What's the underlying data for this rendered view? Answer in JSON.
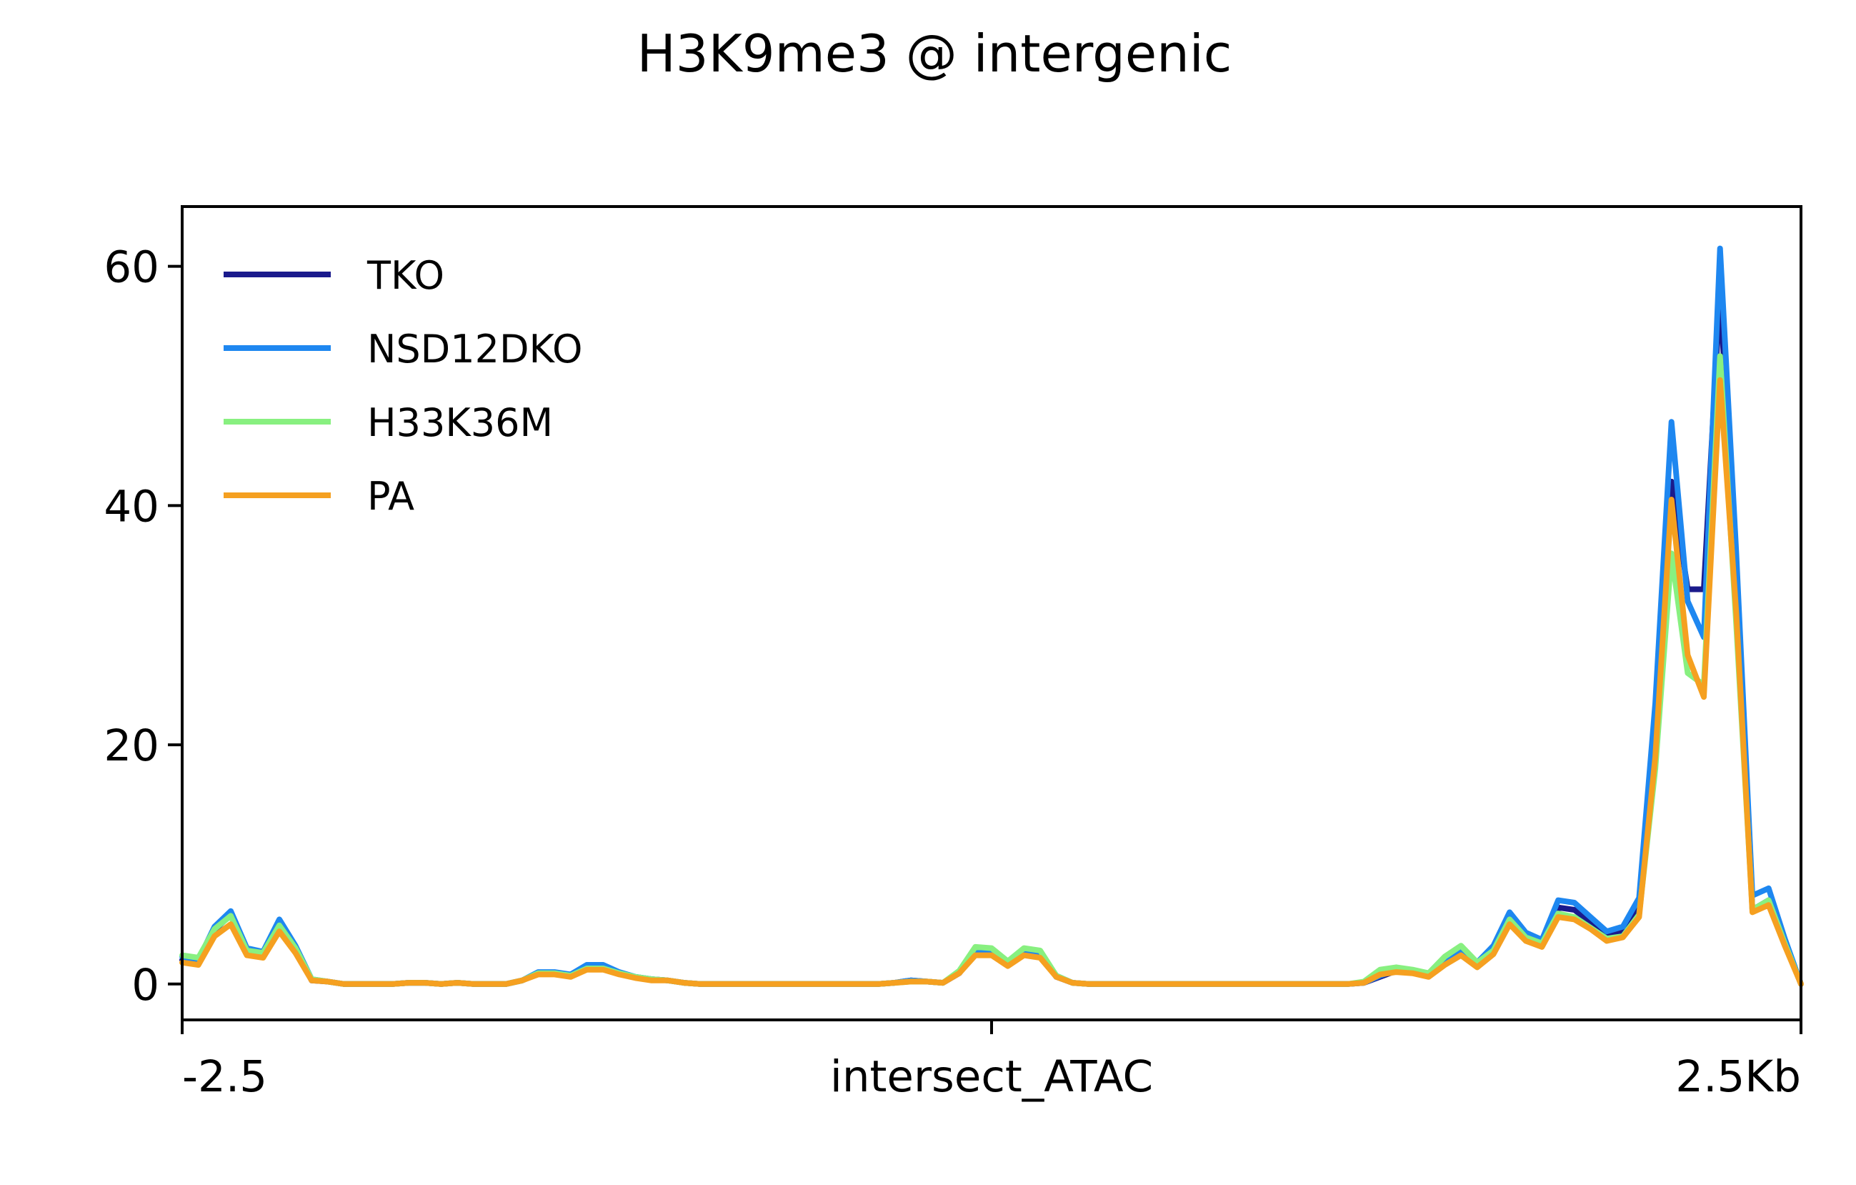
{
  "chart_data": {
    "type": "line",
    "title": "H3K9me3 @ intergenic",
    "xlabel": "",
    "ylabel": "",
    "x_tick_labels": [
      "-2.5",
      "intersect_ATAC",
      "2.5Kb"
    ],
    "x_tick_values": [
      -2500,
      0,
      2500
    ],
    "xlim": [
      -2500,
      2500
    ],
    "ylim": [
      -3,
      65
    ],
    "y_ticks": [
      0,
      20,
      40,
      60
    ],
    "grid": false,
    "legend_position": "upper-left",
    "x": [
      -2500,
      -2450,
      -2400,
      -2350,
      -2300,
      -2250,
      -2200,
      -2150,
      -2100,
      -2050,
      -2000,
      -1950,
      -1900,
      -1850,
      -1800,
      -1750,
      -1700,
      -1650,
      -1600,
      -1550,
      -1500,
      -1450,
      -1400,
      -1350,
      -1300,
      -1250,
      -1200,
      -1150,
      -1100,
      -1050,
      -1000,
      -950,
      -900,
      -850,
      -800,
      -750,
      -700,
      -650,
      -600,
      -550,
      -500,
      -450,
      -400,
      -350,
      -300,
      -250,
      -200,
      -150,
      -100,
      -50,
      0,
      50,
      100,
      150,
      200,
      250,
      300,
      350,
      400,
      450,
      500,
      550,
      600,
      650,
      700,
      750,
      800,
      850,
      900,
      950,
      1000,
      1050,
      1100,
      1150,
      1200,
      1250,
      1300,
      1350,
      1400,
      1450,
      1500,
      1550,
      1600,
      1650,
      1700,
      1750,
      1800,
      1850,
      1900,
      1950,
      2000,
      2050,
      2100,
      2150,
      2200,
      2250,
      2300,
      2350,
      2400,
      2450,
      2500
    ],
    "series": [
      {
        "name": "TKO",
        "color": "#1a1a8c",
        "values": [
          2.0,
          1.8,
          4.5,
          5.8,
          2.8,
          2.5,
          5.0,
          3.0,
          0.3,
          0.2,
          0.0,
          0.0,
          0.0,
          0.0,
          0.1,
          0.1,
          0.0,
          0.1,
          0.0,
          0.0,
          0.0,
          0.3,
          0.9,
          0.9,
          0.7,
          1.4,
          1.4,
          0.9,
          0.6,
          0.4,
          0.3,
          0.1,
          0.0,
          0.0,
          0.0,
          0.0,
          0.0,
          0.0,
          0.0,
          0.0,
          0.0,
          0.0,
          0.0,
          0.0,
          0.1,
          0.3,
          0.2,
          0.1,
          0.9,
          2.6,
          2.6,
          1.6,
          2.6,
          2.4,
          0.6,
          0.1,
          0.0,
          0.0,
          0.0,
          0.0,
          0.0,
          0.0,
          0.0,
          0.0,
          0.0,
          0.0,
          0.0,
          0.0,
          0.0,
          0.0,
          0.0,
          0.0,
          0.0,
          0.1,
          0.6,
          1.1,
          1.0,
          0.7,
          1.8,
          2.6,
          1.6,
          2.9,
          5.4,
          3.9,
          3.4,
          6.4,
          6.2,
          5.2,
          4.1,
          4.4,
          6.6,
          22.0,
          42.0,
          33.0,
          33.0,
          58.0,
          33.0,
          6.2,
          7.0,
          3.5,
          0.0
        ]
      },
      {
        "name": "NSD12DKO",
        "color": "#1e87f0",
        "values": [
          2.3,
          2.0,
          4.8,
          6.1,
          3.0,
          2.7,
          5.4,
          3.2,
          0.4,
          0.2,
          0.0,
          0.0,
          0.0,
          0.0,
          0.1,
          0.1,
          0.0,
          0.1,
          0.0,
          0.0,
          0.0,
          0.3,
          1.0,
          1.0,
          0.8,
          1.6,
          1.6,
          1.0,
          0.6,
          0.4,
          0.3,
          0.1,
          0.0,
          0.0,
          0.0,
          0.0,
          0.0,
          0.0,
          0.0,
          0.0,
          0.0,
          0.0,
          0.0,
          0.0,
          0.1,
          0.3,
          0.2,
          0.1,
          1.0,
          2.8,
          2.8,
          1.8,
          2.8,
          2.6,
          0.7,
          0.1,
          0.0,
          0.0,
          0.0,
          0.0,
          0.0,
          0.0,
          0.0,
          0.0,
          0.0,
          0.0,
          0.0,
          0.0,
          0.0,
          0.0,
          0.0,
          0.0,
          0.0,
          0.1,
          0.7,
          1.2,
          1.1,
          0.8,
          2.0,
          2.9,
          1.8,
          3.2,
          6.0,
          4.3,
          3.7,
          7.0,
          6.8,
          5.6,
          4.4,
          4.8,
          7.2,
          23.5,
          47.0,
          32.0,
          29.0,
          61.5,
          36.0,
          7.4,
          8.0,
          3.8,
          0.0
        ]
      },
      {
        "name": "H33K36M",
        "color": "#88f080",
        "values": [
          2.4,
          2.2,
          4.6,
          5.7,
          2.8,
          2.6,
          4.9,
          3.0,
          0.4,
          0.2,
          0.0,
          0.0,
          0.0,
          0.0,
          0.1,
          0.1,
          0.0,
          0.1,
          0.0,
          0.0,
          0.0,
          0.3,
          0.9,
          0.9,
          0.7,
          1.3,
          1.3,
          0.9,
          0.6,
          0.4,
          0.3,
          0.1,
          0.0,
          0.0,
          0.0,
          0.0,
          0.0,
          0.0,
          0.0,
          0.0,
          0.0,
          0.0,
          0.0,
          0.0,
          0.1,
          0.2,
          0.2,
          0.1,
          1.1,
          3.1,
          3.0,
          1.9,
          3.0,
          2.8,
          0.7,
          0.1,
          0.0,
          0.0,
          0.0,
          0.0,
          0.0,
          0.0,
          0.0,
          0.0,
          0.0,
          0.0,
          0.0,
          0.0,
          0.0,
          0.0,
          0.0,
          0.0,
          0.0,
          0.2,
          1.2,
          1.4,
          1.2,
          0.9,
          2.3,
          3.2,
          1.8,
          2.8,
          5.4,
          3.9,
          3.4,
          5.9,
          5.6,
          4.7,
          3.8,
          4.0,
          5.8,
          18.0,
          36.0,
          26.0,
          25.0,
          52.5,
          30.0,
          6.2,
          7.0,
          3.4,
          0.0
        ]
      },
      {
        "name": "PA",
        "color": "#f5a020",
        "values": [
          1.8,
          1.6,
          4.0,
          5.0,
          2.4,
          2.2,
          4.4,
          2.6,
          0.3,
          0.2,
          0.0,
          0.0,
          0.0,
          0.0,
          0.1,
          0.1,
          0.0,
          0.1,
          0.0,
          0.0,
          0.0,
          0.3,
          0.8,
          0.8,
          0.6,
          1.2,
          1.2,
          0.8,
          0.5,
          0.3,
          0.3,
          0.1,
          0.0,
          0.0,
          0.0,
          0.0,
          0.0,
          0.0,
          0.0,
          0.0,
          0.0,
          0.0,
          0.0,
          0.0,
          0.1,
          0.2,
          0.2,
          0.1,
          0.9,
          2.4,
          2.4,
          1.5,
          2.4,
          2.2,
          0.6,
          0.1,
          0.0,
          0.0,
          0.0,
          0.0,
          0.0,
          0.0,
          0.0,
          0.0,
          0.0,
          0.0,
          0.0,
          0.0,
          0.0,
          0.0,
          0.0,
          0.0,
          0.0,
          0.1,
          0.8,
          1.0,
          0.9,
          0.6,
          1.6,
          2.4,
          1.4,
          2.5,
          5.0,
          3.6,
          3.1,
          5.6,
          5.4,
          4.6,
          3.6,
          3.9,
          5.6,
          19.0,
          40.5,
          27.5,
          24.0,
          50.5,
          31.0,
          6.0,
          6.6,
          3.2,
          0.0
        ]
      }
    ]
  }
}
